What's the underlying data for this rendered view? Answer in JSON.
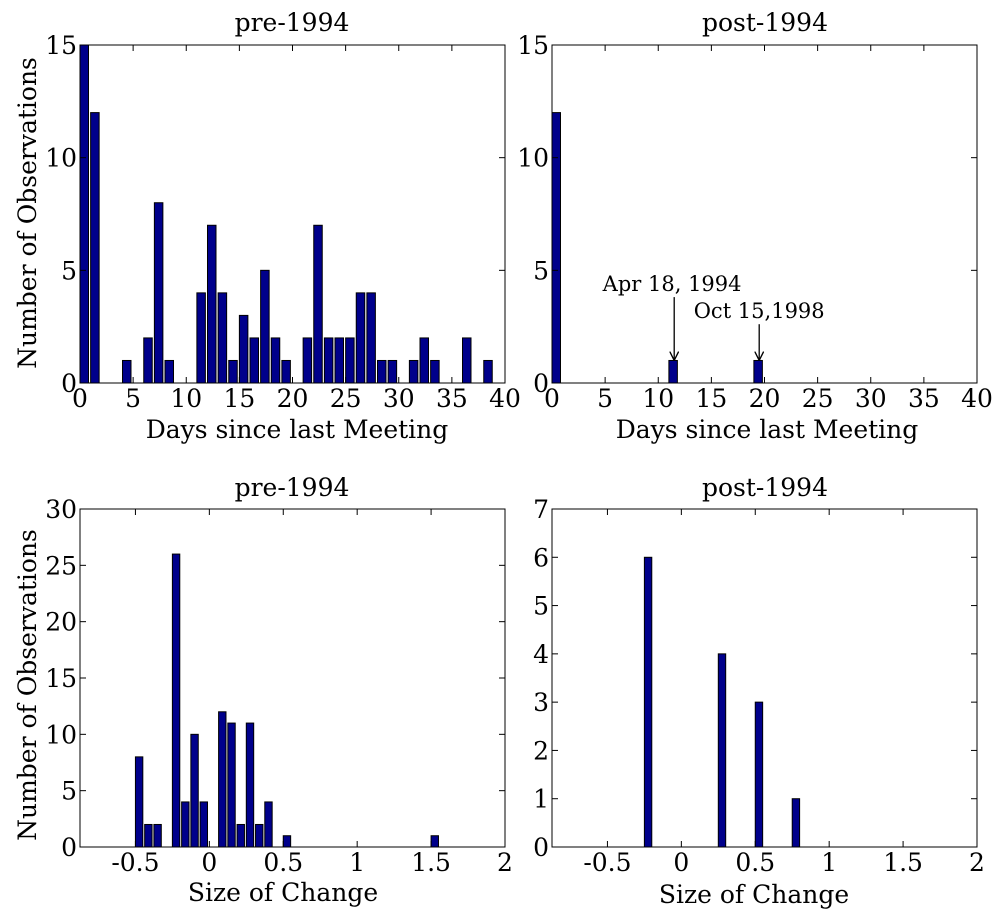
{
  "bar_color": "#00008b",
  "chart_data": [
    {
      "type": "bar",
      "title": "pre-1994",
      "xlabel": "Days since last Meeting",
      "ylabel": "Number of Observations",
      "xlim": [
        0,
        40
      ],
      "ylim": [
        0,
        15
      ],
      "xticks": [
        0,
        5,
        10,
        15,
        20,
        25,
        30,
        35,
        40
      ],
      "yticks": [
        0,
        5,
        10,
        15
      ],
      "bin_width": 1,
      "x": [
        0,
        1,
        4,
        6,
        7,
        8,
        11,
        12,
        13,
        14,
        15,
        16,
        17,
        18,
        19,
        21,
        22,
        23,
        24,
        25,
        26,
        27,
        28,
        29,
        31,
        32,
        33,
        36,
        38
      ],
      "values": [
        15,
        12,
        1,
        2,
        8,
        1,
        4,
        7,
        4,
        1,
        3,
        2,
        5,
        2,
        1,
        2,
        7,
        2,
        2,
        2,
        4,
        4,
        1,
        1,
        1,
        2,
        1,
        2,
        1
      ]
    },
    {
      "type": "bar",
      "title": "post-1994",
      "xlabel": "Days since last Meeting",
      "ylabel": "",
      "xlim": [
        0,
        40
      ],
      "ylim": [
        0,
        15
      ],
      "xticks": [
        0,
        5,
        10,
        15,
        20,
        25,
        30,
        35,
        40
      ],
      "yticks": [
        0,
        5,
        10,
        15
      ],
      "bin_width": 1,
      "x": [
        0,
        11,
        19
      ],
      "values": [
        12,
        1,
        1
      ],
      "annotations": [
        {
          "text": "Apr 18, 1994",
          "x": 11.5,
          "y": 1,
          "text_x": 11.3,
          "text_y": 3.9
        },
        {
          "text": "Oct 15,1998",
          "x": 19.5,
          "y": 1,
          "text_x": 19.5,
          "text_y": 2.7
        }
      ]
    },
    {
      "type": "bar",
      "title": "pre-1994",
      "xlabel": "Size of Change",
      "ylabel": "Number of Observations",
      "xlim": [
        -0.875,
        2
      ],
      "ylim": [
        0,
        30
      ],
      "xticks": [
        -0.5,
        0,
        0.5,
        1,
        1.5,
        2
      ],
      "xtick_labels": [
        "-0.5",
        "0",
        "0.5",
        "1",
        "1.5",
        "2"
      ],
      "yticks": [
        0,
        5,
        10,
        15,
        20,
        25,
        30
      ],
      "bin_width": 0.0625,
      "x": [
        -0.5,
        -0.4375,
        -0.375,
        -0.25,
        -0.1875,
        -0.125,
        -0.0625,
        0.0625,
        0.125,
        0.1875,
        0.25,
        0.3125,
        0.375,
        0.5,
        1.5
      ],
      "values": [
        8,
        2,
        2,
        26,
        4,
        10,
        4,
        12,
        11,
        2,
        11,
        2,
        4,
        1,
        1
      ]
    },
    {
      "type": "bar",
      "title": "post-1994",
      "xlabel": "Size of Change",
      "ylabel": "",
      "xlim": [
        -0.875,
        2
      ],
      "ylim": [
        0,
        7
      ],
      "xticks": [
        -0.5,
        0,
        0.5,
        1,
        1.5,
        2
      ],
      "xtick_labels": [
        "-0.5",
        "0",
        "0.5",
        "1",
        "1.5",
        "2"
      ],
      "yticks": [
        0,
        1,
        2,
        3,
        4,
        5,
        6,
        7
      ],
      "bin_width": 0.0625,
      "x": [
        -0.25,
        0.25,
        0.5,
        0.75
      ],
      "values": [
        6,
        4,
        3,
        1
      ]
    }
  ]
}
